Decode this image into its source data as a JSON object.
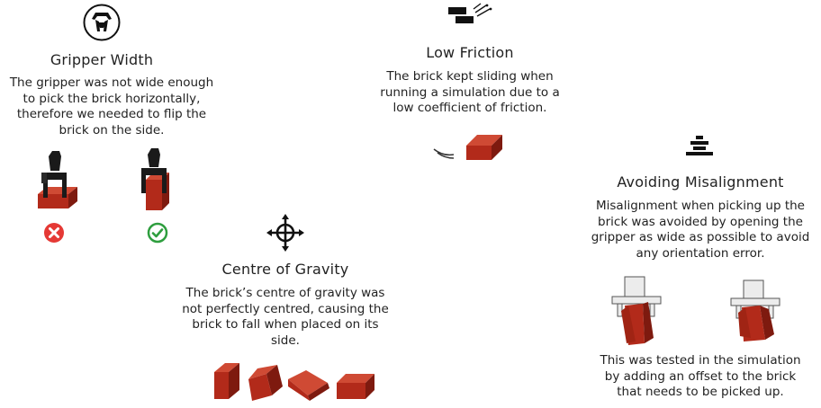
{
  "sections": {
    "gripper_width": {
      "title": "Gripper Width",
      "description": "The gripper was not wide enough to pick the brick horizontally, therefore we needed to flip the brick on the side.",
      "icon": "robot-gripper-icon",
      "status_bad_icon": "error-x-icon",
      "status_good_icon": "check-circle-icon",
      "status_bad_color": "#e53935",
      "status_good_color": "#2e9e3e"
    },
    "low_friction": {
      "title": "Low Friction",
      "description": "The brick kept sliding when running a simulation due to a low coefficient of friction.",
      "icon": "sliding-bricks-icon"
    },
    "centre_of_gravity": {
      "title": "Centre of Gravity",
      "description": "The brick’s centre of gravity was not perfectly centred, causing the brick to fall when placed on its side.",
      "icon": "crosshair-move-icon"
    },
    "avoiding_misalignment": {
      "title": "Avoiding Misalignment",
      "description": "Misalignment when picking up the brick was avoided by opening the gripper as wide as possible to avoid any orientation error.",
      "note": "This was tested in the simulation by adding an offset to the brick that needs to be picked up.",
      "icon": "stacked-bars-icon"
    }
  },
  "colors": {
    "brick_front": "#b22a1a",
    "brick_top": "#cf4a34",
    "brick_side": "#7e1a0f",
    "ink": "#222222"
  }
}
